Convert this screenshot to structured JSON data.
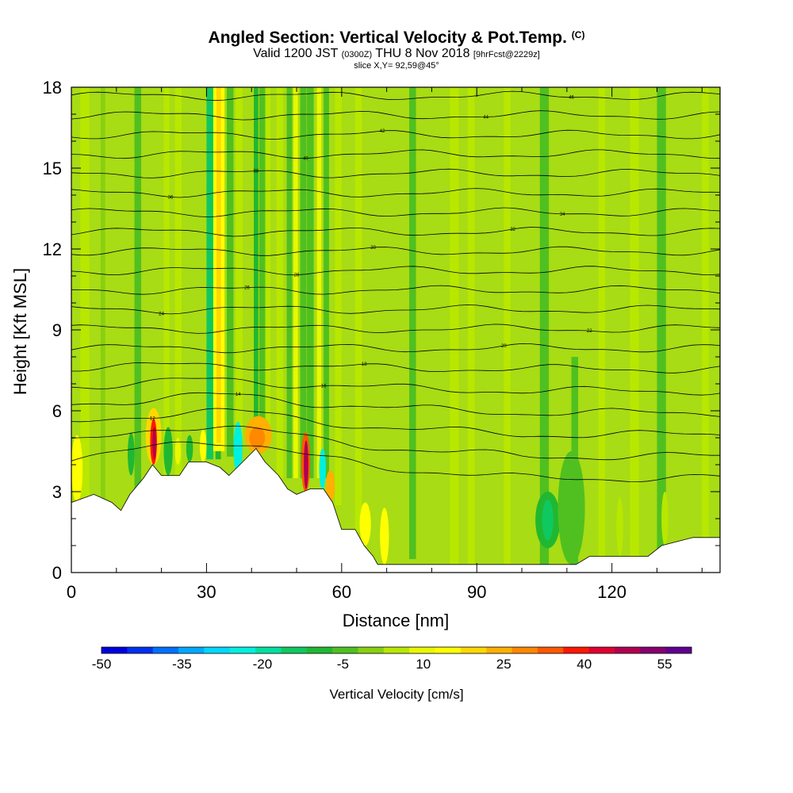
{
  "chart_data": {
    "type": "heatmap",
    "title": "Angled Section: Vertical Velocity & Pot.Temp.",
    "title_unit": "(C)",
    "subtitle": {
      "part1": "Valid 1200 JST",
      "part2": "(0300Z)",
      "part3": "THU 8 Nov 2018",
      "part4": "[9hrFcst@2229z]"
    },
    "slice_label": "slice X,Y= 92,59@45°",
    "xlabel": "Distance [nm]",
    "ylabel": "Height [Kft MSL]",
    "xlim": [
      0,
      144
    ],
    "ylim": [
      0,
      18
    ],
    "xticks": [
      0,
      30,
      60,
      90,
      120
    ],
    "yticks": [
      0,
      3,
      6,
      9,
      12,
      15,
      18
    ],
    "colorbar": {
      "label": "Vertical Velocity [cm/s]",
      "ticks": [
        -50,
        -35,
        -20,
        -5,
        10,
        25,
        40,
        55
      ],
      "range": [
        -50,
        60
      ],
      "colors": [
        "#0000e0",
        "#0030f0",
        "#0070ff",
        "#00a8ff",
        "#00d8ff",
        "#00f0e0",
        "#00e0a0",
        "#10c860",
        "#20b830",
        "#50c020",
        "#88d010",
        "#b8e800",
        "#e8f800",
        "#ffff00",
        "#ffd800",
        "#ffb000",
        "#ff8800",
        "#ff5800",
        "#ff1800",
        "#e00030",
        "#b00050",
        "#880070",
        "#600090"
      ]
    },
    "terrain_kft": [
      [
        0,
        2.6
      ],
      [
        5,
        2.9
      ],
      [
        9,
        2.6
      ],
      [
        11,
        2.3
      ],
      [
        13,
        2.9
      ],
      [
        16,
        3.5
      ],
      [
        18,
        4.0
      ],
      [
        20,
        3.6
      ],
      [
        24,
        3.6
      ],
      [
        26,
        4.1
      ],
      [
        30,
        4.1
      ],
      [
        33,
        3.9
      ],
      [
        35,
        3.6
      ],
      [
        38,
        4.1
      ],
      [
        41,
        4.6
      ],
      [
        43,
        4.1
      ],
      [
        46,
        3.6
      ],
      [
        48,
        3.1
      ],
      [
        50,
        2.9
      ],
      [
        53,
        3.1
      ],
      [
        56,
        3.1
      ],
      [
        58,
        2.6
      ],
      [
        60,
        1.6
      ],
      [
        63,
        1.6
      ],
      [
        65,
        1.0
      ],
      [
        67,
        0.6
      ],
      [
        68,
        0.3
      ],
      [
        100,
        0.3
      ],
      [
        112,
        0.3
      ],
      [
        115,
        0.6
      ],
      [
        128,
        0.6
      ],
      [
        131,
        1.0
      ],
      [
        138,
        1.3
      ],
      [
        144,
        1.3
      ]
    ],
    "theta_labels": [
      "12",
      "14",
      "16",
      "18",
      "20",
      "22",
      "24",
      "26",
      "28",
      "30",
      "32",
      "34",
      "36",
      "38",
      "40",
      "42",
      "44",
      "46"
    ]
  }
}
